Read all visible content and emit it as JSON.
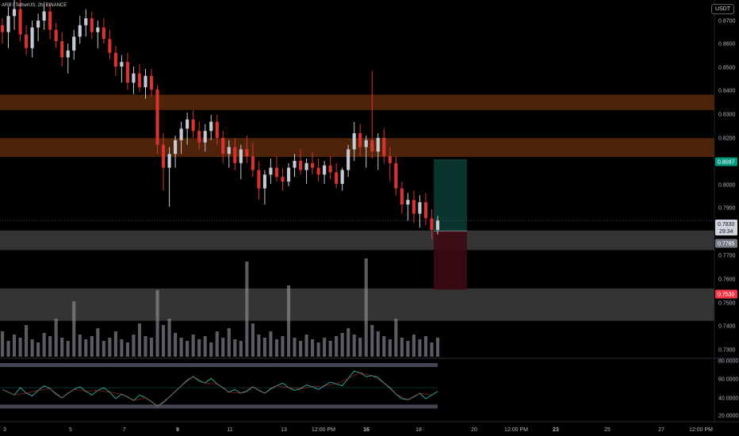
{
  "header": {
    "symbol": "ARB / TetherUS, 2h, BINANCE",
    "currency": "USDT"
  },
  "price_axis": {
    "ticks": [
      "0.8700",
      "0.8600",
      "0.8500",
      "0.8400",
      "0.8300",
      "0.8200",
      "0.8000",
      "0.7900",
      "0.7700",
      "0.7600",
      "0.7500",
      "0.7400",
      "0.7300"
    ],
    "labels": {
      "target": "0.8097",
      "current": "0.7830",
      "countdown": "29:34",
      "entry": "0.7785",
      "stop": "0.7530"
    }
  },
  "rsi_axis": {
    "ticks": [
      "80.0000",
      "60.0000",
      "40.0000",
      "20.0000"
    ]
  },
  "time_axis": {
    "ticks": [
      "3",
      "5",
      "7",
      "9",
      "11",
      "13",
      "12:00 PM",
      "16",
      "18",
      "20",
      "12:00 PM",
      "23",
      "25",
      "27",
      "12:00 PM"
    ]
  },
  "colors": {
    "bg": "#000000",
    "up": "#c5cad3",
    "down": "#d8332f",
    "supply": "#5a2a0c",
    "demand": "#3a3a3a",
    "target": "#0b3a32",
    "stop": "#3d0b14",
    "rsi": "#26a69a"
  },
  "chart_data": {
    "type": "candlestick",
    "ylim": [
      0.722,
      0.875
    ],
    "zones": [
      {
        "kind": "supply",
        "from": 0.8311,
        "to": 0.8378
      },
      {
        "kind": "supply",
        "from": 0.8107,
        "to": 0.8189
      },
      {
        "kind": "demand",
        "from": 0.7702,
        "to": 0.7787
      },
      {
        "kind": "demand",
        "from": 0.7394,
        "to": 0.7535
      }
    ],
    "position": {
      "entry": 0.7785,
      "target": 0.8097,
      "stop": 0.753
    },
    "candles": [
      [
        0.868,
        0.871,
        0.86,
        0.865
      ],
      [
        0.865,
        0.876,
        0.858,
        0.872
      ],
      [
        0.872,
        0.88,
        0.866,
        0.875
      ],
      [
        0.875,
        0.879,
        0.861,
        0.864
      ],
      [
        0.864,
        0.868,
        0.855,
        0.858
      ],
      [
        0.858,
        0.87,
        0.854,
        0.867
      ],
      [
        0.867,
        0.873,
        0.861,
        0.87
      ],
      [
        0.87,
        0.878,
        0.866,
        0.874
      ],
      [
        0.874,
        0.877,
        0.862,
        0.866
      ],
      [
        0.866,
        0.869,
        0.858,
        0.861
      ],
      [
        0.861,
        0.865,
        0.85,
        0.854
      ],
      [
        0.854,
        0.86,
        0.847,
        0.857
      ],
      [
        0.857,
        0.866,
        0.853,
        0.863
      ],
      [
        0.863,
        0.872,
        0.86,
        0.868
      ],
      [
        0.868,
        0.875,
        0.863,
        0.871
      ],
      [
        0.871,
        0.874,
        0.862,
        0.865
      ],
      [
        0.865,
        0.87,
        0.858,
        0.867
      ],
      [
        0.867,
        0.871,
        0.86,
        0.862
      ],
      [
        0.862,
        0.866,
        0.853,
        0.856
      ],
      [
        0.856,
        0.859,
        0.846,
        0.85
      ],
      [
        0.85,
        0.855,
        0.843,
        0.852
      ],
      [
        0.852,
        0.856,
        0.84,
        0.843
      ],
      [
        0.843,
        0.85,
        0.838,
        0.847
      ],
      [
        0.847,
        0.851,
        0.839,
        0.841
      ],
      [
        0.841,
        0.849,
        0.836,
        0.846
      ],
      [
        0.846,
        0.849,
        0.837,
        0.84
      ],
      [
        0.84,
        0.842,
        0.812,
        0.816
      ],
      [
        0.816,
        0.821,
        0.796,
        0.806
      ],
      [
        0.806,
        0.815,
        0.789,
        0.812
      ],
      [
        0.812,
        0.82,
        0.806,
        0.818
      ],
      [
        0.818,
        0.826,
        0.812,
        0.823
      ],
      [
        0.823,
        0.83,
        0.816,
        0.827
      ],
      [
        0.827,
        0.831,
        0.819,
        0.822
      ],
      [
        0.822,
        0.826,
        0.814,
        0.817
      ],
      [
        0.817,
        0.825,
        0.813,
        0.822
      ],
      [
        0.822,
        0.829,
        0.818,
        0.826
      ],
      [
        0.826,
        0.829,
        0.816,
        0.819
      ],
      [
        0.819,
        0.822,
        0.808,
        0.812
      ],
      [
        0.812,
        0.818,
        0.806,
        0.815
      ],
      [
        0.815,
        0.819,
        0.805,
        0.808
      ],
      [
        0.808,
        0.816,
        0.801,
        0.814
      ],
      [
        0.814,
        0.82,
        0.808,
        0.811
      ],
      [
        0.811,
        0.817,
        0.802,
        0.805
      ],
      [
        0.805,
        0.809,
        0.792,
        0.797
      ],
      [
        0.797,
        0.805,
        0.79,
        0.803
      ],
      [
        0.803,
        0.81,
        0.799,
        0.806
      ],
      [
        0.806,
        0.811,
        0.8,
        0.802
      ],
      [
        0.802,
        0.806,
        0.796,
        0.8
      ],
      [
        0.8,
        0.808,
        0.798,
        0.806
      ],
      [
        0.806,
        0.812,
        0.802,
        0.809
      ],
      [
        0.809,
        0.814,
        0.803,
        0.805
      ],
      [
        0.805,
        0.81,
        0.799,
        0.808
      ],
      [
        0.808,
        0.813,
        0.803,
        0.806
      ],
      [
        0.806,
        0.81,
        0.8,
        0.803
      ],
      [
        0.803,
        0.809,
        0.799,
        0.807
      ],
      [
        0.807,
        0.811,
        0.801,
        0.804
      ],
      [
        0.804,
        0.808,
        0.797,
        0.799
      ],
      [
        0.799,
        0.806,
        0.796,
        0.805
      ],
      [
        0.805,
        0.816,
        0.802,
        0.814
      ],
      [
        0.814,
        0.826,
        0.809,
        0.821
      ],
      [
        0.821,
        0.825,
        0.811,
        0.815
      ],
      [
        0.815,
        0.82,
        0.806,
        0.818
      ],
      [
        0.818,
        0.848,
        0.81,
        0.813
      ],
      [
        0.813,
        0.821,
        0.805,
        0.819
      ],
      [
        0.819,
        0.823,
        0.808,
        0.811
      ],
      [
        0.811,
        0.815,
        0.8,
        0.808
      ],
      [
        0.808,
        0.811,
        0.794,
        0.797
      ],
      [
        0.797,
        0.8,
        0.786,
        0.79
      ],
      [
        0.79,
        0.795,
        0.783,
        0.792
      ],
      [
        0.792,
        0.796,
        0.782,
        0.786
      ],
      [
        0.786,
        0.794,
        0.78,
        0.791
      ],
      [
        0.791,
        0.795,
        0.781,
        0.784
      ],
      [
        0.784,
        0.788,
        0.775,
        0.779
      ],
      [
        0.779,
        0.785,
        0.777,
        0.783
      ]
    ],
    "volume": [
      0.16,
      0.1,
      0.14,
      0.12,
      0.2,
      0.11,
      0.09,
      0.15,
      0.13,
      0.24,
      0.12,
      0.1,
      0.35,
      0.14,
      0.11,
      0.13,
      0.18,
      0.1,
      0.12,
      0.16,
      0.11,
      0.09,
      0.14,
      0.21,
      0.13,
      0.12,
      0.42,
      0.2,
      0.24,
      0.15,
      0.12,
      0.1,
      0.14,
      0.11,
      0.13,
      0.09,
      0.16,
      0.12,
      0.18,
      0.11,
      0.1,
      0.6,
      0.21,
      0.14,
      0.12,
      0.16,
      0.11,
      0.13,
      0.45,
      0.12,
      0.1,
      0.14,
      0.11,
      0.09,
      0.12,
      0.1,
      0.13,
      0.15,
      0.18,
      0.14,
      0.12,
      0.62,
      0.2,
      0.16,
      0.13,
      0.11,
      0.24,
      0.12,
      0.1,
      0.14,
      0.11,
      0.13,
      0.09,
      0.12
    ],
    "rsi": [
      48,
      45,
      42,
      50,
      44,
      41,
      47,
      52,
      49,
      43,
      39,
      44,
      48,
      51,
      46,
      42,
      47,
      50,
      45,
      38,
      43,
      40,
      36,
      42,
      39,
      35,
      30,
      34,
      40,
      46,
      52,
      58,
      62,
      57,
      55,
      60,
      54,
      50,
      45,
      48,
      44,
      46,
      51,
      47,
      44,
      49,
      52,
      55,
      50,
      47,
      49,
      53,
      51,
      48,
      52,
      56,
      54,
      52,
      60,
      68,
      66,
      62,
      63,
      61,
      55,
      50,
      43,
      38,
      37,
      40,
      44,
      38,
      42,
      46
    ]
  }
}
